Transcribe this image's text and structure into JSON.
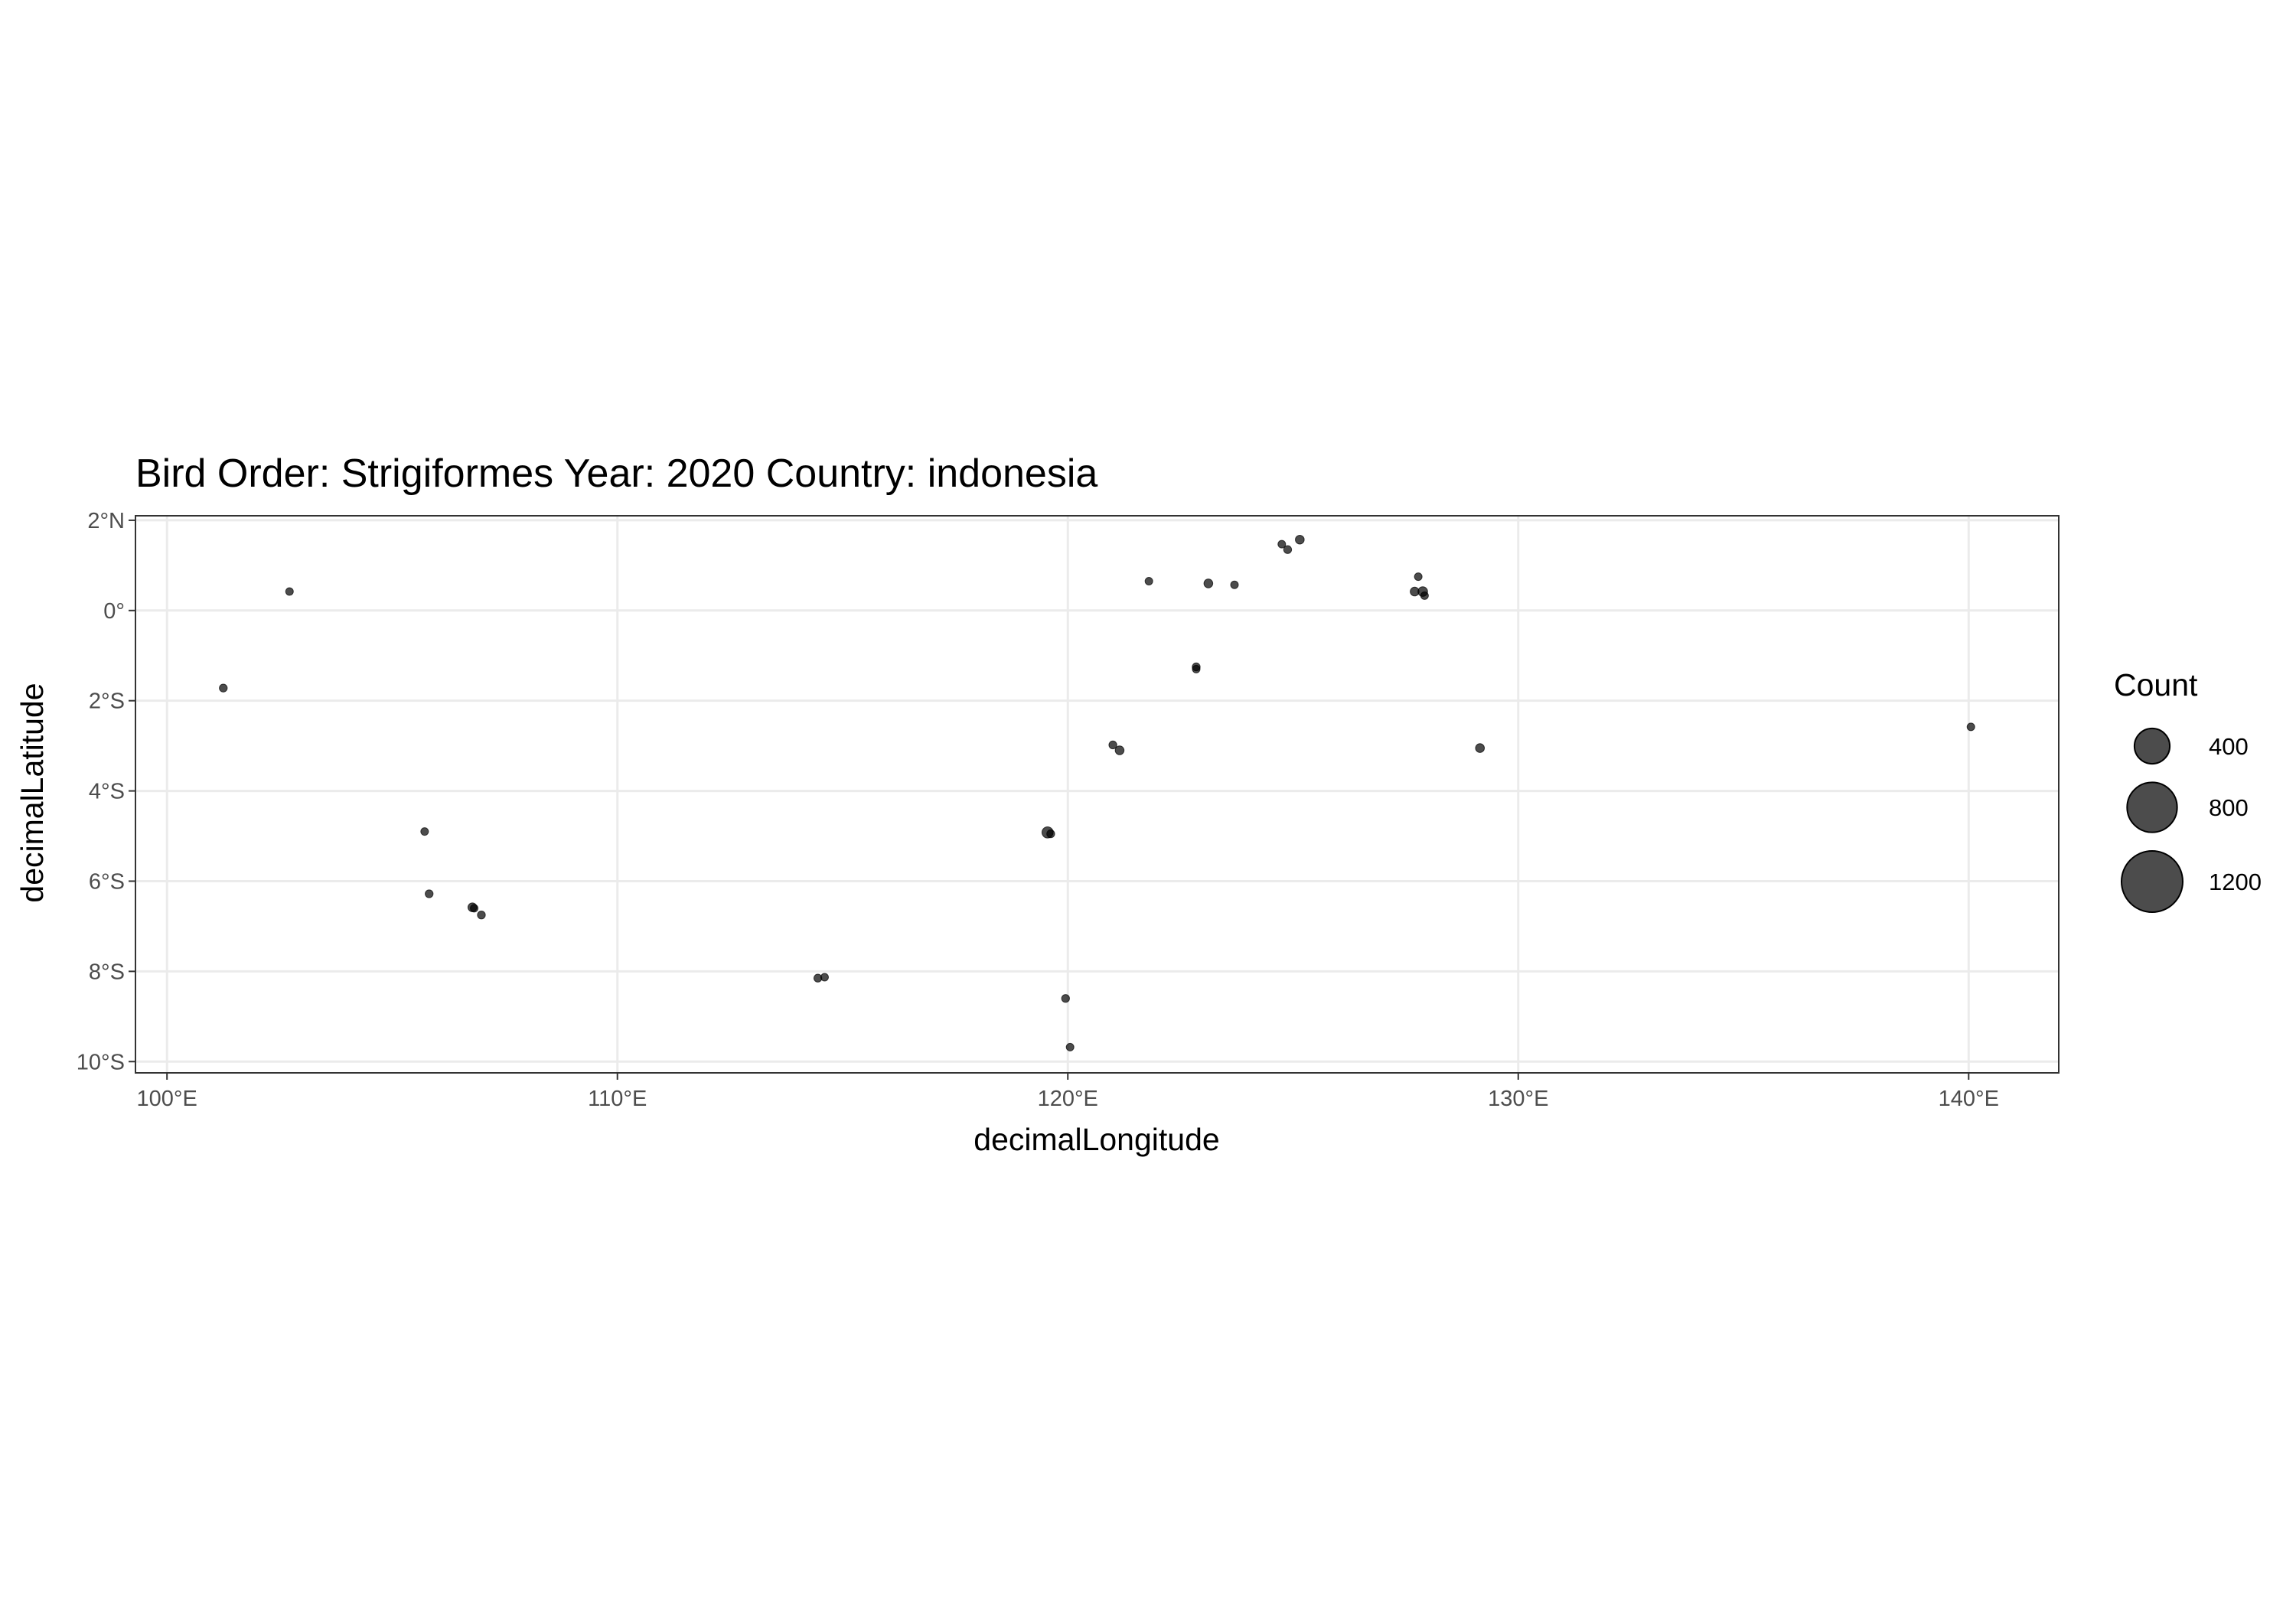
{
  "chart_data": {
    "type": "scatter",
    "title": "Bird Order: Strigiformes Year: 2020 Country: indonesia",
    "xlabel": "decimalLongitude",
    "ylabel": "decimalLatitude",
    "xlim": [
      99.3,
      142
    ],
    "ylim": [
      -10.25,
      2.1
    ],
    "x_ticks": [
      {
        "value": 100,
        "label": "100°E"
      },
      {
        "value": 110,
        "label": "110°E"
      },
      {
        "value": 120,
        "label": "120°E"
      },
      {
        "value": 130,
        "label": "130°E"
      },
      {
        "value": 140,
        "label": "140°E"
      }
    ],
    "y_ticks": [
      {
        "value": 2,
        "label": "2°N"
      },
      {
        "value": 0,
        "label": "0°"
      },
      {
        "value": -2,
        "label": "2°S"
      },
      {
        "value": -4,
        "label": "4°S"
      },
      {
        "value": -6,
        "label": "6°S"
      },
      {
        "value": -8,
        "label": "8°S"
      },
      {
        "value": -10,
        "label": "10°S"
      }
    ],
    "grid": true,
    "point_color": "#000000",
    "point_opacity": 0.7,
    "legend": {
      "title": "Count",
      "position": "right",
      "entries": [
        {
          "label": "400",
          "value": 400
        },
        {
          "label": "800",
          "value": 800
        },
        {
          "label": "1200",
          "value": 1200
        }
      ]
    },
    "points": [
      {
        "lon": 101.25,
        "lat": -1.72,
        "count": 20
      },
      {
        "lon": 102.72,
        "lat": 0.42,
        "count": 15
      },
      {
        "lon": 105.72,
        "lat": -4.9,
        "count": 15
      },
      {
        "lon": 105.82,
        "lat": -6.28,
        "count": 20
      },
      {
        "lon": 106.78,
        "lat": -6.58,
        "count": 25
      },
      {
        "lon": 106.82,
        "lat": -6.6,
        "count": 15
      },
      {
        "lon": 106.98,
        "lat": -6.75,
        "count": 20
      },
      {
        "lon": 114.45,
        "lat": -8.15,
        "count": 20
      },
      {
        "lon": 114.6,
        "lat": -8.13,
        "count": 15
      },
      {
        "lon": 119.55,
        "lat": -4.92,
        "count": 40
      },
      {
        "lon": 119.62,
        "lat": -4.95,
        "count": 20
      },
      {
        "lon": 119.95,
        "lat": -8.6,
        "count": 20
      },
      {
        "lon": 120.05,
        "lat": -9.68,
        "count": 10
      },
      {
        "lon": 121.0,
        "lat": -2.98,
        "count": 20
      },
      {
        "lon": 121.15,
        "lat": -3.1,
        "count": 25
      },
      {
        "lon": 121.8,
        "lat": 0.65,
        "count": 12
      },
      {
        "lon": 122.85,
        "lat": -1.25,
        "count": 20
      },
      {
        "lon": 122.85,
        "lat": -1.3,
        "count": 12
      },
      {
        "lon": 123.12,
        "lat": 0.6,
        "count": 25
      },
      {
        "lon": 123.7,
        "lat": 0.57,
        "count": 12
      },
      {
        "lon": 124.75,
        "lat": 1.47,
        "count": 12
      },
      {
        "lon": 124.88,
        "lat": 1.35,
        "count": 20
      },
      {
        "lon": 125.15,
        "lat": 1.57,
        "count": 25
      },
      {
        "lon": 127.7,
        "lat": 0.42,
        "count": 25
      },
      {
        "lon": 127.78,
        "lat": 0.75,
        "count": 15
      },
      {
        "lon": 127.88,
        "lat": 0.42,
        "count": 30
      },
      {
        "lon": 127.92,
        "lat": 0.33,
        "count": 15
      },
      {
        "lon": 129.15,
        "lat": -3.05,
        "count": 25
      },
      {
        "lon": 140.05,
        "lat": -2.58,
        "count": 15
      }
    ]
  }
}
